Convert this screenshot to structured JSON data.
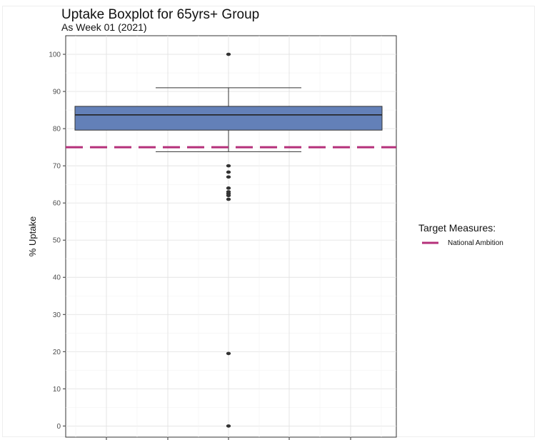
{
  "chart_data": {
    "type": "box",
    "title": "Uptake Boxplot for 65yrs+ Group",
    "subtitle": "As Week 01 (2021)",
    "xlabel": "",
    "ylabel": "% Uptake",
    "ylim": [
      -3,
      105
    ],
    "y_ticks": [
      0,
      10,
      20,
      30,
      40,
      50,
      60,
      70,
      80,
      90,
      100
    ],
    "grid": true,
    "box": {
      "q1": 79.6,
      "median": 83.7,
      "q3": 86.0,
      "whisker_low": 73.8,
      "whisker_high": 91.0,
      "fill": "#6380b8",
      "outliers": [
        100,
        70,
        68.3,
        67,
        64,
        63,
        62.5,
        62,
        61,
        19.5,
        0
      ]
    },
    "reference_lines": [
      {
        "name": "National Ambition",
        "value": 75,
        "style": "dashed",
        "color": "#b5307a"
      }
    ],
    "legend": {
      "title": "Target Measures:",
      "placement": "right",
      "items": [
        {
          "label": "National Ambition",
          "color": "#b5307a"
        }
      ]
    }
  }
}
